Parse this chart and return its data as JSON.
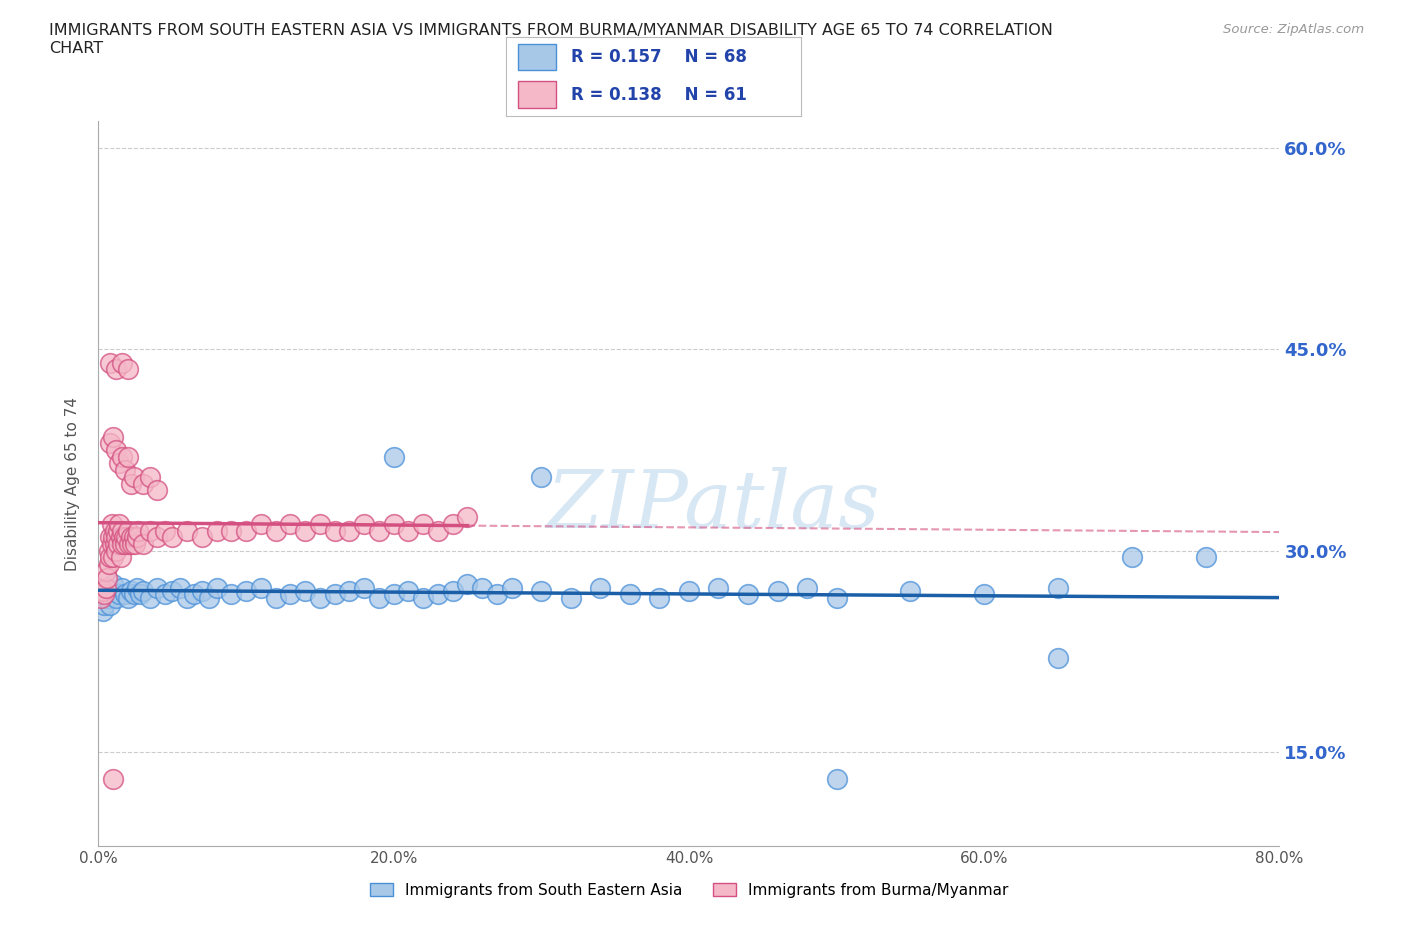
{
  "title": "IMMIGRANTS FROM SOUTH EASTERN ASIA VS IMMIGRANTS FROM BURMA/MYANMAR DISABILITY AGE 65 TO 74 CORRELATION\nCHART",
  "source_text": "Source: ZipAtlas.com",
  "ylabel": "Disability Age 65 to 74",
  "xlim": [
    0.0,
    0.8
  ],
  "ylim": [
    0.08,
    0.62
  ],
  "xtick_labels": [
    "0.0%",
    "",
    "20.0%",
    "",
    "40.0%",
    "",
    "60.0%",
    "",
    "80.0%"
  ],
  "xtick_vals": [
    0.0,
    0.1,
    0.2,
    0.3,
    0.4,
    0.5,
    0.6,
    0.7,
    0.8
  ],
  "ytick_labels": [
    "15.0%",
    "30.0%",
    "45.0%",
    "60.0%"
  ],
  "ytick_vals": [
    0.15,
    0.3,
    0.45,
    0.6
  ],
  "legend_R1": "R = 0.157",
  "legend_N1": "N = 68",
  "legend_R2": "R = 0.138",
  "legend_N2": "N = 61",
  "color_blue": "#a8c8e8",
  "color_pink": "#f4b8c8",
  "edge_blue": "#4a90d9",
  "edge_pink": "#d45080",
  "trendline_blue": "#1a5fa8",
  "trendline_pink": "#d45080",
  "legend_text_color": "#2244aa",
  "watermark": "ZIPatlas",
  "series1_label": "Immigrants from South Eastern Asia",
  "series2_label": "Immigrants from Burma/Myanmar",
  "blue_x": [
    0.003,
    0.004,
    0.005,
    0.006,
    0.007,
    0.008,
    0.009,
    0.01,
    0.012,
    0.014,
    0.016,
    0.018,
    0.02,
    0.022,
    0.024,
    0.026,
    0.028,
    0.03,
    0.035,
    0.04,
    0.045,
    0.05,
    0.055,
    0.06,
    0.065,
    0.07,
    0.075,
    0.08,
    0.09,
    0.1,
    0.11,
    0.12,
    0.13,
    0.14,
    0.15,
    0.16,
    0.17,
    0.18,
    0.19,
    0.2,
    0.21,
    0.22,
    0.23,
    0.24,
    0.25,
    0.26,
    0.27,
    0.28,
    0.3,
    0.32,
    0.34,
    0.36,
    0.38,
    0.4,
    0.42,
    0.44,
    0.46,
    0.48,
    0.5,
    0.55,
    0.6,
    0.65,
    0.7,
    0.75,
    0.2,
    0.3,
    0.5,
    0.65
  ],
  "blue_y": [
    0.255,
    0.26,
    0.265,
    0.27,
    0.265,
    0.26,
    0.27,
    0.275,
    0.265,
    0.268,
    0.272,
    0.268,
    0.265,
    0.27,
    0.268,
    0.272,
    0.268,
    0.27,
    0.265,
    0.272,
    0.268,
    0.27,
    0.272,
    0.265,
    0.268,
    0.27,
    0.265,
    0.272,
    0.268,
    0.27,
    0.272,
    0.265,
    0.268,
    0.27,
    0.265,
    0.268,
    0.27,
    0.272,
    0.265,
    0.268,
    0.27,
    0.265,
    0.268,
    0.27,
    0.275,
    0.272,
    0.268,
    0.272,
    0.27,
    0.265,
    0.272,
    0.268,
    0.265,
    0.27,
    0.272,
    0.268,
    0.27,
    0.272,
    0.265,
    0.27,
    0.268,
    0.272,
    0.295,
    0.295,
    0.37,
    0.355,
    0.13,
    0.22
  ],
  "pink_x": [
    0.002,
    0.003,
    0.004,
    0.005,
    0.005,
    0.006,
    0.007,
    0.007,
    0.008,
    0.008,
    0.009,
    0.009,
    0.01,
    0.01,
    0.011,
    0.011,
    0.012,
    0.012,
    0.013,
    0.013,
    0.014,
    0.015,
    0.015,
    0.016,
    0.016,
    0.017,
    0.018,
    0.019,
    0.02,
    0.021,
    0.022,
    0.023,
    0.024,
    0.025,
    0.026,
    0.027,
    0.03,
    0.035,
    0.04,
    0.045,
    0.05,
    0.06,
    0.07,
    0.08,
    0.09,
    0.1,
    0.11,
    0.12,
    0.13,
    0.14,
    0.15,
    0.16,
    0.17,
    0.18,
    0.19,
    0.2,
    0.21,
    0.22,
    0.23,
    0.24,
    0.25
  ],
  "pink_y": [
    0.265,
    0.27,
    0.268,
    0.272,
    0.285,
    0.28,
    0.29,
    0.3,
    0.295,
    0.31,
    0.305,
    0.32,
    0.295,
    0.31,
    0.305,
    0.315,
    0.3,
    0.31,
    0.305,
    0.315,
    0.32,
    0.295,
    0.31,
    0.305,
    0.315,
    0.31,
    0.305,
    0.31,
    0.315,
    0.305,
    0.31,
    0.305,
    0.31,
    0.305,
    0.31,
    0.315,
    0.305,
    0.315,
    0.31,
    0.315,
    0.31,
    0.315,
    0.31,
    0.315,
    0.315,
    0.315,
    0.32,
    0.315,
    0.32,
    0.315,
    0.32,
    0.315,
    0.315,
    0.32,
    0.315,
    0.32,
    0.315,
    0.32,
    0.315,
    0.32,
    0.325
  ],
  "pink_outliers_x": [
    0.008,
    0.01,
    0.012,
    0.014,
    0.016,
    0.018,
    0.02,
    0.022,
    0.024,
    0.03,
    0.035,
    0.04,
    0.008,
    0.012,
    0.016,
    0.02,
    0.01
  ],
  "pink_outliers_y": [
    0.38,
    0.385,
    0.375,
    0.365,
    0.37,
    0.36,
    0.37,
    0.35,
    0.355,
    0.35,
    0.355,
    0.345,
    0.44,
    0.435,
    0.44,
    0.435,
    0.13
  ]
}
